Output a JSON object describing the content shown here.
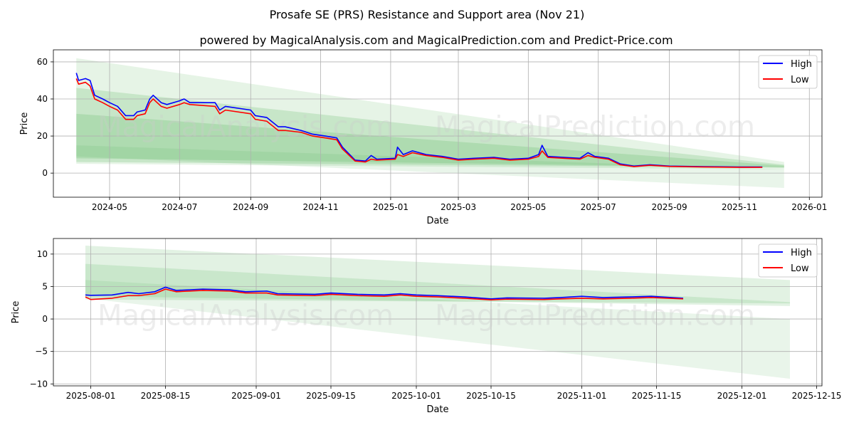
{
  "title": "Prosafe SE (PRS) Resistance and Support area (Nov 21)",
  "subtitle": "powered by MagicalAnalysis.com and MagicalPrediction.com and Predict-Price.com",
  "watermarks": [
    "MagicalAnalysis.com",
    "MagicalPrediction.com"
  ],
  "colors": {
    "high": "#0000ff",
    "low": "#ff0000",
    "band": "#4caf50",
    "grid": "#b0b0b0"
  },
  "chart_data": [
    {
      "type": "line",
      "xlabel": "Date",
      "ylabel": "Price",
      "xlim": [
        "2024-03-13",
        "2026-01-12"
      ],
      "ylim": [
        -13,
        66.5
      ],
      "grid": true,
      "legend": "top-right",
      "legend_entries": [
        "High",
        "Low"
      ],
      "yticks": [
        0,
        20,
        40,
        60
      ],
      "ytick_labels": [
        "0",
        "20",
        "40",
        "60"
      ],
      "xticks": [
        "2024-05-01",
        "2024-07-01",
        "2024-09-01",
        "2024-11-01",
        "2025-01-01",
        "2025-03-01",
        "2025-05-01",
        "2025-07-01",
        "2025-09-01",
        "2025-11-01",
        "2026-01-01"
      ],
      "xtick_labels": [
        "2024-05",
        "2024-07",
        "2024-09",
        "2024-11",
        "2025-01",
        "2025-03",
        "2025-05",
        "2025-07",
        "2025-09",
        "2025-11",
        "2026-01"
      ],
      "bands": [
        {
          "start": "2024-04-02",
          "end": "2025-12-10",
          "start_range": [
            5,
            62
          ],
          "end_range": [
            2,
            6
          ],
          "opacity": 0.14
        },
        {
          "start": "2024-04-02",
          "end": "2025-12-10",
          "start_range": [
            6,
            46
          ],
          "end_range": [
            3,
            4.5
          ],
          "opacity": 0.2
        },
        {
          "start": "2024-04-02",
          "end": "2025-12-10",
          "start_range": [
            8,
            32
          ],
          "end_range": [
            3,
            4
          ],
          "opacity": 0.2
        },
        {
          "start": "2024-04-02",
          "end": "2025-12-10",
          "start_range": [
            9,
            15
          ],
          "end_range": [
            -8,
            2
          ],
          "opacity": 0.12
        }
      ],
      "x": [
        "2024-04-02",
        "2024-04-04",
        "2024-04-10",
        "2024-04-14",
        "2024-04-18",
        "2024-04-25",
        "2024-05-01",
        "2024-05-08",
        "2024-05-15",
        "2024-05-22",
        "2024-05-25",
        "2024-06-01",
        "2024-06-05",
        "2024-06-08",
        "2024-06-15",
        "2024-06-20",
        "2024-07-01",
        "2024-07-05",
        "2024-07-10",
        "2024-08-01",
        "2024-08-05",
        "2024-08-10",
        "2024-09-01",
        "2024-09-05",
        "2024-09-15",
        "2024-09-25",
        "2024-10-01",
        "2024-10-15",
        "2024-10-25",
        "2024-11-05",
        "2024-11-15",
        "2024-11-20",
        "2024-12-01",
        "2024-12-10",
        "2024-12-15",
        "2024-12-20",
        "2025-01-05",
        "2025-01-07",
        "2025-01-12",
        "2025-01-20",
        "2025-02-01",
        "2025-02-15",
        "2025-03-01",
        "2025-03-15",
        "2025-04-01",
        "2025-04-15",
        "2025-05-01",
        "2025-05-10",
        "2025-05-13",
        "2025-05-18",
        "2025-06-01",
        "2025-06-15",
        "2025-06-22",
        "2025-06-28",
        "2025-07-10",
        "2025-07-20",
        "2025-08-01",
        "2025-08-15",
        "2025-09-01",
        "2025-10-01",
        "2025-11-01",
        "2025-11-21"
      ],
      "series": [
        {
          "name": "High",
          "values": [
            54,
            50,
            51,
            50,
            42,
            40,
            38,
            36,
            31,
            31,
            33,
            34,
            40,
            42,
            38,
            37,
            39,
            40,
            38,
            38,
            34,
            36,
            34,
            31,
            30,
            25,
            25,
            23,
            21,
            20,
            19,
            14,
            7,
            6.5,
            9.5,
            7.5,
            8,
            14,
            10,
            12,
            10,
            9,
            7.5,
            8,
            8.5,
            7.5,
            8,
            10,
            15,
            9,
            8.5,
            8,
            11,
            9,
            8,
            5,
            3.8,
            4.5,
            3.8,
            3.5,
            3.3,
            3.3
          ]
        },
        {
          "name": "Low",
          "values": [
            51,
            48,
            49,
            47,
            40,
            38,
            36,
            34,
            29,
            29,
            31,
            32,
            38,
            40,
            36,
            35,
            37,
            38,
            37,
            36,
            32,
            34,
            32,
            29,
            28,
            23,
            23,
            22,
            20,
            19,
            18,
            13,
            6.5,
            6,
            7.5,
            7,
            7.5,
            10,
            9,
            11,
            9.5,
            8.5,
            7,
            7.5,
            8,
            7,
            7.5,
            9,
            12,
            8.5,
            8,
            7.5,
            9.5,
            8.5,
            7.5,
            4.5,
            3.5,
            4.2,
            3.6,
            3.3,
            3.1,
            3.1
          ]
        }
      ]
    },
    {
      "type": "line",
      "xlabel": "Date",
      "ylabel": "Price",
      "xlim": [
        "2025-07-25",
        "2025-12-16"
      ],
      "ylim": [
        -10.3,
        12.4
      ],
      "grid": true,
      "legend": "top-right",
      "legend_entries": [
        "High",
        "Low"
      ],
      "yticks": [
        -10,
        -5,
        0,
        5,
        10
      ],
      "ytick_labels": [
        "−10",
        "−5",
        "0",
        "5",
        "10"
      ],
      "xticks": [
        "2025-08-01",
        "2025-08-15",
        "2025-09-01",
        "2025-09-15",
        "2025-10-01",
        "2025-10-15",
        "2025-11-01",
        "2025-11-15",
        "2025-12-01",
        "2025-12-15"
      ],
      "xtick_labels": [
        "2025-08-01",
        "2025-08-15",
        "2025-09-01",
        "2025-09-15",
        "2025-10-01",
        "2025-10-15",
        "2025-11-01",
        "2025-11-15",
        "2025-12-01",
        "2025-12-15"
      ],
      "bands": [
        {
          "start": "2025-07-31",
          "end": "2025-12-10",
          "start_range": [
            3,
            11.3
          ],
          "end_range": [
            2.4,
            6
          ],
          "opacity": 0.16
        },
        {
          "start": "2025-07-31",
          "end": "2025-12-10",
          "start_range": [
            3.5,
            8.5
          ],
          "end_range": [
            2,
            2.6
          ],
          "opacity": 0.16
        },
        {
          "start": "2025-07-31",
          "end": "2025-12-10",
          "start_range": [
            3.2,
            6
          ],
          "end_range": [
            -9.2,
            0
          ],
          "opacity": 0.12
        }
      ],
      "x": [
        "2025-07-31",
        "2025-08-01",
        "2025-08-05",
        "2025-08-08",
        "2025-08-10",
        "2025-08-13",
        "2025-08-15",
        "2025-08-17",
        "2025-08-22",
        "2025-08-27",
        "2025-08-30",
        "2025-09-03",
        "2025-09-05",
        "2025-09-12",
        "2025-09-15",
        "2025-09-20",
        "2025-09-25",
        "2025-09-28",
        "2025-10-01",
        "2025-10-05",
        "2025-10-10",
        "2025-10-15",
        "2025-10-18",
        "2025-10-25",
        "2025-10-28",
        "2025-11-01",
        "2025-11-05",
        "2025-11-10",
        "2025-11-14",
        "2025-11-20"
      ],
      "series": [
        {
          "name": "High",
          "values": [
            3.7,
            3.65,
            3.7,
            4.1,
            3.9,
            4.2,
            4.9,
            4.4,
            4.6,
            4.5,
            4.2,
            4.3,
            3.9,
            3.8,
            4.0,
            3.8,
            3.7,
            3.9,
            3.7,
            3.6,
            3.4,
            3.1,
            3.25,
            3.2,
            3.3,
            3.5,
            3.3,
            3.4,
            3.5,
            3.2
          ]
        },
        {
          "name": "Low",
          "values": [
            3.4,
            3.0,
            3.2,
            3.6,
            3.6,
            3.9,
            4.6,
            4.2,
            4.4,
            4.3,
            4.0,
            4.0,
            3.7,
            3.6,
            3.8,
            3.6,
            3.5,
            3.7,
            3.5,
            3.4,
            3.2,
            2.95,
            3.05,
            3.0,
            3.1,
            3.2,
            3.1,
            3.2,
            3.3,
            3.1
          ]
        }
      ]
    }
  ]
}
